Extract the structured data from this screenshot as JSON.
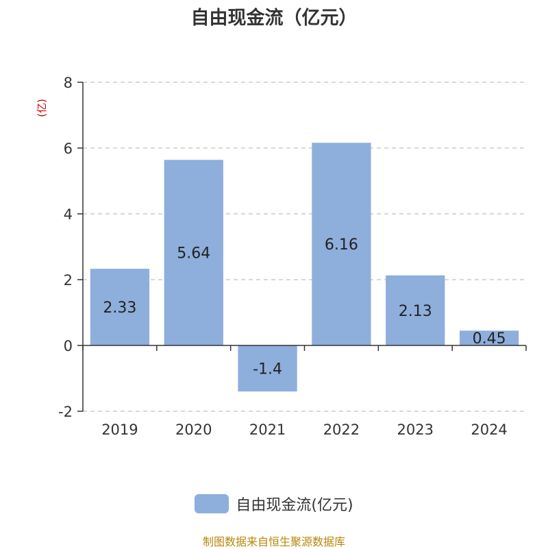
{
  "chart_data": {
    "type": "bar",
    "title": "自由现金流（亿元）",
    "ylabel": "(亿)",
    "categories": [
      "2019",
      "2020",
      "2021",
      "2022",
      "2023",
      "2024"
    ],
    "series": [
      {
        "name": "自由现金流(亿元)",
        "values": [
          2.33,
          5.64,
          -1.4,
          6.16,
          2.13,
          0.45
        ],
        "labels": [
          "2.33",
          "5.64",
          "-1.4",
          "6.16",
          "2.13",
          "0.45"
        ],
        "color": "#8eaedc"
      }
    ],
    "ylim": [
      -2,
      8
    ],
    "yticks": [
      -2,
      0,
      2,
      4,
      6,
      8
    ],
    "grid": true,
    "legend_position": "bottom"
  },
  "footer": "制图数据来自恒生聚源数据库"
}
